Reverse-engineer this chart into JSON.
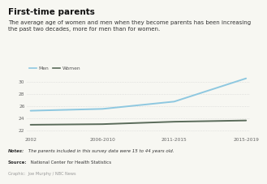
{
  "title": "First-time parents",
  "subtitle": "The average age of women and men when they become parents has been increasing\nthe past two decades, more for men than for women.",
  "x_labels": [
    "2002",
    "2006-2010",
    "2011-2015",
    "2015-2019"
  ],
  "x_values": [
    0,
    1,
    2,
    3
  ],
  "men_values": [
    25.3,
    25.6,
    26.8,
    30.6
  ],
  "women_values": [
    23.0,
    23.1,
    23.5,
    23.7
  ],
  "men_color": "#8ec8e0",
  "women_color": "#5a6b5a",
  "ylim": [
    21,
    31
  ],
  "yticks": [
    22,
    24,
    26,
    28,
    30
  ],
  "grid_color": "#cccccc",
  "notes_bold": "Notes:",
  "notes_rest": " The parents included in this survey data were 15 to 44 years old.",
  "source_bold": "Source:",
  "source_rest": " National Center for Health Statistics",
  "graphic": "Graphic:  Joe Murphy / NBC News",
  "bg_color": "#f7f7f2",
  "title_fontsize": 7.5,
  "subtitle_fontsize": 5.0,
  "tick_fontsize": 4.2,
  "notes_fontsize": 4.0,
  "graphic_fontsize": 3.6
}
